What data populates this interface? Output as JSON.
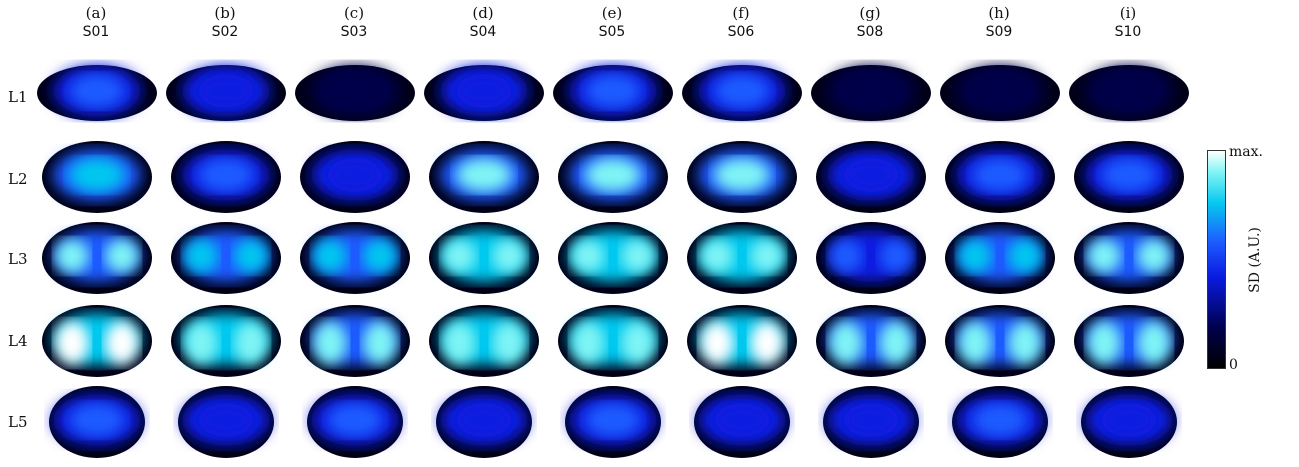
{
  "columns": [
    {
      "panel": "(a)",
      "subject": "S01"
    },
    {
      "panel": "(b)",
      "subject": "S02"
    },
    {
      "panel": "(c)",
      "subject": "S03"
    },
    {
      "panel": "(d)",
      "subject": "S04"
    },
    {
      "panel": "(e)",
      "subject": "S05"
    },
    {
      "panel": "(f)",
      "subject": "S06"
    },
    {
      "panel": "(g)",
      "subject": "S08"
    },
    {
      "panel": "(h)",
      "subject": "S09"
    },
    {
      "panel": "(i)",
      "subject": "S10"
    }
  ],
  "rows": [
    "L1",
    "L2",
    "L3",
    "L4",
    "L5"
  ],
  "colorbar": {
    "title": "SD (A.U.)",
    "max_label": "max.",
    "min_label": "0",
    "colors": [
      "#000000",
      "#00004a",
      "#0a1be0",
      "#1d5bff",
      "#06c8ef",
      "#7ff4f5",
      "#ffffff"
    ]
  },
  "intensity": [
    [
      0.45,
      0.3,
      0.22,
      0.4,
      0.45,
      0.5,
      0.2,
      0.22,
      0.22
    ],
    [
      0.6,
      0.45,
      0.4,
      0.8,
      0.8,
      0.85,
      0.4,
      0.45,
      0.55
    ],
    [
      0.85,
      0.6,
      0.6,
      0.9,
      0.9,
      0.9,
      0.5,
      0.6,
      0.75
    ],
    [
      0.95,
      0.9,
      0.8,
      0.9,
      0.9,
      0.95,
      0.8,
      0.85,
      0.85
    ],
    [
      0.5,
      0.4,
      0.45,
      0.4,
      0.45,
      0.4,
      0.4,
      0.45,
      0.4
    ]
  ]
}
